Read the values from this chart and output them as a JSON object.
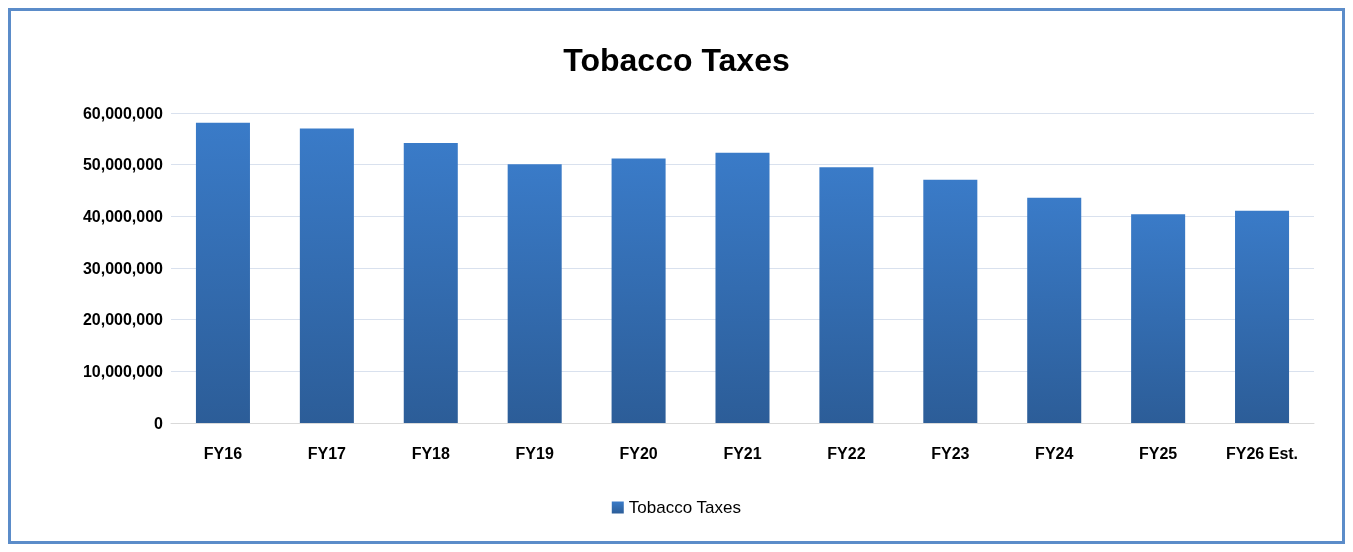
{
  "chart_data": {
    "type": "bar",
    "title": "Tobacco Taxes",
    "categories": [
      "FY16",
      "FY17",
      "FY18",
      "FY19",
      "FY20",
      "FY21",
      "FY22",
      "FY23",
      "FY24",
      "FY25",
      "FY26 Est."
    ],
    "series": [
      {
        "name": "Tobacco Taxes",
        "color": "#3a7bc8",
        "values": [
          58100000,
          57000000,
          54200000,
          50100000,
          51200000,
          52300000,
          49500000,
          47100000,
          43600000,
          40400000,
          41100000
        ]
      }
    ],
    "ylim": [
      0,
      60000000
    ],
    "yticks": [
      0,
      {
        "value": 10000000,
        "label": "10,000,000"
      },
      {
        "value": 20000000,
        "label": "20,000,000"
      },
      {
        "value": 30000000,
        "label": "30,000,000"
      },
      {
        "value": 40000000,
        "label": "40,000,000"
      },
      {
        "value": 50000000,
        "label": "50,000,000"
      },
      {
        "value": 60000000,
        "label": "60,000,000"
      }
    ],
    "grid": "y",
    "legend": "bottom"
  }
}
